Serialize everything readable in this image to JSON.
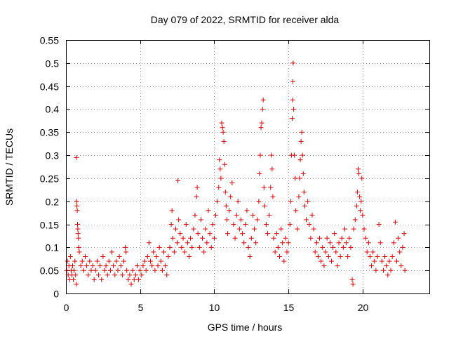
{
  "chart_data": {
    "type": "scatter",
    "title": "Day 079 of 2022, SRMTID for receiver alda",
    "xlabel": "GPS time / hours",
    "ylabel": "SRMTID / TECUs",
    "xlim": [
      0,
      24.5
    ],
    "ylim": [
      0,
      0.55
    ],
    "xticks": [
      0,
      5,
      10,
      15,
      20
    ],
    "xtick_labels": [
      "0",
      "5",
      "10",
      "15",
      "20"
    ],
    "yticks": [
      0,
      0.05,
      0.1,
      0.15,
      0.2,
      0.25,
      0.3,
      0.35,
      0.4,
      0.45,
      0.5,
      0.55
    ],
    "ytick_labels": [
      "0",
      "0.05",
      "0.1",
      "0.15",
      "0.2",
      "0.25",
      "0.3",
      "0.35",
      "0.4",
      "0.45",
      "0.5",
      "0.55"
    ],
    "grid": true,
    "marker": "+",
    "marker_color": "#e00000",
    "series": [
      {
        "name": "SRMTID",
        "points": [
          [
            0.05,
            0.05
          ],
          [
            0.1,
            0.07
          ],
          [
            0.15,
            0.04
          ],
          [
            0.2,
            0.06
          ],
          [
            0.25,
            0.03
          ],
          [
            0.3,
            0.08
          ],
          [
            0.35,
            0.05
          ],
          [
            0.4,
            0.04
          ],
          [
            0.45,
            0.06
          ],
          [
            0.5,
            0.03
          ],
          [
            0.55,
            0.05
          ],
          [
            0.6,
            0.07
          ],
          [
            0.65,
            0.04
          ],
          [
            0.7,
            0.02
          ],
          [
            0.7,
            0.295
          ],
          [
            0.72,
            0.2
          ],
          [
            0.74,
            0.19
          ],
          [
            0.76,
            0.18
          ],
          [
            0.78,
            0.15
          ],
          [
            0.8,
            0.14
          ],
          [
            0.82,
            0.13
          ],
          [
            0.84,
            0.12
          ],
          [
            0.86,
            0.1
          ],
          [
            0.9,
            0.09
          ],
          [
            1.0,
            0.06
          ],
          [
            1.1,
            0.07
          ],
          [
            1.2,
            0.05
          ],
          [
            1.3,
            0.08
          ],
          [
            1.4,
            0.06
          ],
          [
            1.5,
            0.04
          ],
          [
            1.6,
            0.07
          ],
          [
            1.7,
            0.05
          ],
          [
            1.8,
            0.06
          ],
          [
            1.9,
            0.03
          ],
          [
            2.0,
            0.05
          ],
          [
            2.1,
            0.07
          ],
          [
            2.2,
            0.04
          ],
          [
            2.3,
            0.06
          ],
          [
            2.4,
            0.03
          ],
          [
            2.5,
            0.08
          ],
          [
            2.6,
            0.05
          ],
          [
            2.7,
            0.06
          ],
          [
            2.8,
            0.04
          ],
          [
            2.9,
            0.07
          ],
          [
            3.0,
            0.05
          ],
          [
            3.1,
            0.09
          ],
          [
            3.2,
            0.06
          ],
          [
            3.3,
            0.04
          ],
          [
            3.4,
            0.07
          ],
          [
            3.5,
            0.05
          ],
          [
            3.6,
            0.08
          ],
          [
            3.7,
            0.06
          ],
          [
            3.8,
            0.04
          ],
          [
            3.9,
            0.07
          ],
          [
            4.0,
            0.1
          ],
          [
            4.05,
            0.09
          ],
          [
            4.1,
            0.05
          ],
          [
            4.2,
            0.03
          ],
          [
            4.3,
            0.04
          ],
          [
            4.4,
            0.02
          ],
          [
            4.5,
            0.05
          ],
          [
            4.6,
            0.03
          ],
          [
            4.7,
            0.04
          ],
          [
            4.8,
            0.06
          ],
          [
            4.9,
            0.03
          ],
          [
            5.0,
            0.05
          ],
          [
            5.1,
            0.04
          ],
          [
            5.2,
            0.06
          ],
          [
            5.3,
            0.07
          ],
          [
            5.4,
            0.05
          ],
          [
            5.5,
            0.08
          ],
          [
            5.6,
            0.11
          ],
          [
            5.7,
            0.07
          ],
          [
            5.8,
            0.06
          ],
          [
            5.9,
            0.09
          ],
          [
            6.0,
            0.05
          ],
          [
            6.1,
            0.08
          ],
          [
            6.2,
            0.06
          ],
          [
            6.3,
            0.1
          ],
          [
            6.4,
            0.07
          ],
          [
            6.5,
            0.05
          ],
          [
            6.6,
            0.09
          ],
          [
            6.7,
            0.06
          ],
          [
            6.8,
            0.04
          ],
          [
            6.9,
            0.08
          ],
          [
            7.0,
            0.1
          ],
          [
            7.1,
            0.15
          ],
          [
            7.15,
            0.18
          ],
          [
            7.2,
            0.12
          ],
          [
            7.3,
            0.09
          ],
          [
            7.4,
            0.14
          ],
          [
            7.5,
            0.11
          ],
          [
            7.55,
            0.245
          ],
          [
            7.6,
            0.16
          ],
          [
            7.7,
            0.13
          ],
          [
            7.8,
            0.1
          ],
          [
            7.9,
            0.12
          ],
          [
            8.0,
            0.09
          ],
          [
            8.1,
            0.15
          ],
          [
            8.2,
            0.11
          ],
          [
            8.3,
            0.08
          ],
          [
            8.4,
            0.12
          ],
          [
            8.5,
            0.1
          ],
          [
            8.6,
            0.14
          ],
          [
            8.7,
            0.17
          ],
          [
            8.8,
            0.21
          ],
          [
            8.85,
            0.23
          ],
          [
            8.9,
            0.13
          ],
          [
            9.0,
            0.1
          ],
          [
            9.1,
            0.16
          ],
          [
            9.2,
            0.12
          ],
          [
            9.3,
            0.09
          ],
          [
            9.4,
            0.14
          ],
          [
            9.5,
            0.11
          ],
          [
            9.6,
            0.18
          ],
          [
            9.7,
            0.13
          ],
          [
            9.8,
            0.1
          ],
          [
            9.9,
            0.15
          ],
          [
            10.0,
            0.12
          ],
          [
            10.1,
            0.17
          ],
          [
            10.2,
            0.2
          ],
          [
            10.3,
            0.23
          ],
          [
            10.35,
            0.29
          ],
          [
            10.4,
            0.27
          ],
          [
            10.45,
            0.25
          ],
          [
            10.5,
            0.37
          ],
          [
            10.55,
            0.36
          ],
          [
            10.6,
            0.35
          ],
          [
            10.65,
            0.33
          ],
          [
            10.7,
            0.28
          ],
          [
            10.75,
            0.22
          ],
          [
            10.8,
            0.19
          ],
          [
            10.85,
            0.16
          ],
          [
            10.9,
            0.13
          ],
          [
            11.0,
            0.18
          ],
          [
            11.1,
            0.21
          ],
          [
            11.2,
            0.24
          ],
          [
            11.3,
            0.15
          ],
          [
            11.4,
            0.12
          ],
          [
            11.5,
            0.17
          ],
          [
            11.6,
            0.2
          ],
          [
            11.7,
            0.14
          ],
          [
            11.8,
            0.16
          ],
          [
            11.9,
            0.13
          ],
          [
            12.0,
            0.11
          ],
          [
            12.1,
            0.15
          ],
          [
            12.2,
            0.18
          ],
          [
            12.3,
            0.1
          ],
          [
            12.4,
            0.08
          ],
          [
            12.5,
            0.12
          ],
          [
            12.6,
            0.17
          ],
          [
            12.7,
            0.14
          ],
          [
            12.8,
            0.11
          ],
          [
            12.9,
            0.16
          ],
          [
            13.0,
            0.2
          ],
          [
            13.05,
            0.26
          ],
          [
            13.1,
            0.3
          ],
          [
            13.15,
            0.36
          ],
          [
            13.2,
            0.37
          ],
          [
            13.25,
            0.4
          ],
          [
            13.3,
            0.42
          ],
          [
            13.35,
            0.23
          ],
          [
            13.4,
            0.19
          ],
          [
            13.5,
            0.15
          ],
          [
            13.6,
            0.13
          ],
          [
            13.7,
            0.17
          ],
          [
            13.8,
            0.23
          ],
          [
            13.85,
            0.3
          ],
          [
            13.9,
            0.27
          ],
          [
            13.95,
            0.21
          ],
          [
            14.0,
            0.12
          ],
          [
            14.1,
            0.09
          ],
          [
            14.2,
            0.13
          ],
          [
            14.3,
            0.1
          ],
          [
            14.4,
            0.08
          ],
          [
            14.5,
            0.14
          ],
          [
            14.6,
            0.11
          ],
          [
            14.7,
            0.07
          ],
          [
            14.8,
            0.12
          ],
          [
            14.9,
            0.09
          ],
          [
            15.0,
            0.11
          ],
          [
            15.1,
            0.15
          ],
          [
            15.15,
            0.2
          ],
          [
            15.2,
            0.3
          ],
          [
            15.25,
            0.38
          ],
          [
            15.28,
            0.42
          ],
          [
            15.3,
            0.46
          ],
          [
            15.32,
            0.5
          ],
          [
            15.35,
            0.4
          ],
          [
            15.4,
            0.3
          ],
          [
            15.45,
            0.25
          ],
          [
            15.5,
            0.18
          ],
          [
            15.6,
            0.14
          ],
          [
            15.7,
            0.21
          ],
          [
            15.75,
            0.25
          ],
          [
            15.8,
            0.29
          ],
          [
            15.85,
            0.33
          ],
          [
            15.9,
            0.35
          ],
          [
            15.95,
            0.3
          ],
          [
            16.0,
            0.26
          ],
          [
            16.05,
            0.22
          ],
          [
            16.1,
            0.19
          ],
          [
            16.2,
            0.16
          ],
          [
            16.3,
            0.2
          ],
          [
            16.4,
            0.15
          ],
          [
            16.5,
            0.12
          ],
          [
            16.6,
            0.17
          ],
          [
            16.7,
            0.14
          ],
          [
            16.8,
            0.09
          ],
          [
            16.9,
            0.11
          ],
          [
            17.0,
            0.08
          ],
          [
            17.1,
            0.12
          ],
          [
            17.2,
            0.07
          ],
          [
            17.3,
            0.1
          ],
          [
            17.4,
            0.06
          ],
          [
            17.5,
            0.09
          ],
          [
            17.6,
            0.12
          ],
          [
            17.7,
            0.08
          ],
          [
            17.8,
            0.11
          ],
          [
            17.9,
            0.07
          ],
          [
            18.0,
            0.1
          ],
          [
            18.1,
            0.13
          ],
          [
            18.2,
            0.09
          ],
          [
            18.3,
            0.06
          ],
          [
            18.4,
            0.11
          ],
          [
            18.5,
            0.08
          ],
          [
            18.6,
            0.12
          ],
          [
            18.7,
            0.1
          ],
          [
            18.8,
            0.14
          ],
          [
            18.9,
            0.11
          ],
          [
            19.0,
            0.08
          ],
          [
            19.1,
            0.12
          ],
          [
            19.2,
            0.1
          ],
          [
            19.3,
            0.03
          ],
          [
            19.35,
            0.02
          ],
          [
            19.4,
            0.14
          ],
          [
            19.5,
            0.16
          ],
          [
            19.6,
            0.19
          ],
          [
            19.65,
            0.22
          ],
          [
            19.7,
            0.27
          ],
          [
            19.75,
            0.26
          ],
          [
            19.8,
            0.21
          ],
          [
            19.85,
            0.18
          ],
          [
            19.9,
            0.2
          ],
          [
            19.95,
            0.25
          ],
          [
            20.0,
            0.17
          ],
          [
            20.1,
            0.14
          ],
          [
            20.2,
            0.12
          ],
          [
            20.3,
            0.09
          ],
          [
            20.4,
            0.11
          ],
          [
            20.5,
            0.08
          ],
          [
            20.6,
            0.06
          ],
          [
            20.7,
            0.09
          ],
          [
            20.8,
            0.07
          ],
          [
            20.9,
            0.05
          ],
          [
            21.0,
            0.08
          ],
          [
            21.1,
            0.15
          ],
          [
            21.2,
            0.11
          ],
          [
            21.3,
            0.07
          ],
          [
            21.4,
            0.05
          ],
          [
            21.5,
            0.08
          ],
          [
            21.6,
            0.06
          ],
          [
            21.7,
            0.04
          ],
          [
            21.8,
            0.07
          ],
          [
            21.9,
            0.05
          ],
          [
            22.0,
            0.08
          ],
          [
            22.1,
            0.11
          ],
          [
            22.2,
            0.155
          ],
          [
            22.3,
            0.07
          ],
          [
            22.4,
            0.12
          ],
          [
            22.5,
            0.09
          ],
          [
            22.6,
            0.06
          ],
          [
            22.7,
            0.1
          ],
          [
            22.8,
            0.13
          ],
          [
            22.85,
            0.05
          ]
        ]
      }
    ]
  }
}
